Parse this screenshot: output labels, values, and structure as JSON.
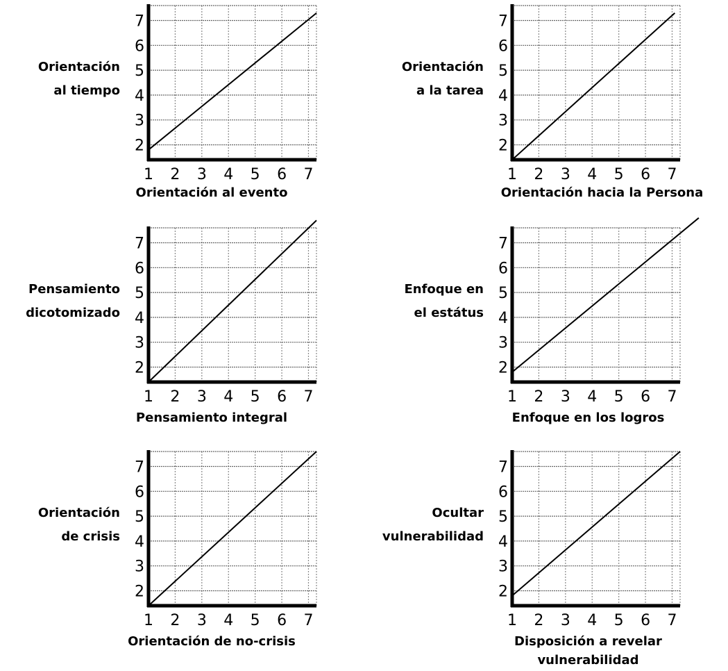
{
  "chart_data": [
    {
      "type": "line",
      "ylabel": [
        "Orientación",
        "al tiempo"
      ],
      "xlabel": [
        "Orientación al evento"
      ],
      "x_ticks": [
        "1",
        "2",
        "3",
        "4",
        "5",
        "6",
        "7"
      ],
      "y_ticks": [
        "2",
        "3",
        "4",
        "5",
        "6",
        "7"
      ],
      "xlim": [
        1,
        7.3
      ],
      "ylim": [
        1.4,
        7.6
      ],
      "grid": true,
      "series": [
        {
          "x": [
            1,
            7.3
          ],
          "y": [
            1.8,
            7.3
          ]
        }
      ]
    },
    {
      "type": "line",
      "ylabel": [
        "Orientación",
        "a la tarea"
      ],
      "xlabel": [
        "Orientación hacia la Persona"
      ],
      "x_ticks": [
        "1",
        "2",
        "3",
        "4",
        "5",
        "6",
        "7"
      ],
      "y_ticks": [
        "2",
        "3",
        "4",
        "5",
        "6",
        "7"
      ],
      "xlim": [
        1,
        7.3
      ],
      "ylim": [
        1.4,
        7.6
      ],
      "grid": true,
      "series": [
        {
          "x": [
            1,
            7.1
          ],
          "y": [
            1.4,
            7.3
          ]
        }
      ]
    },
    {
      "type": "line",
      "ylabel": [
        "Pensamiento",
        "dicotomizado"
      ],
      "xlabel": [
        "Pensamiento integral"
      ],
      "x_ticks": [
        "1",
        "2",
        "3",
        "4",
        "5",
        "6",
        "7"
      ],
      "y_ticks": [
        "2",
        "3",
        "4",
        "5",
        "6",
        "7"
      ],
      "xlim": [
        1,
        7.3
      ],
      "ylim": [
        1.4,
        7.6
      ],
      "grid": true,
      "series": [
        {
          "x": [
            1,
            7.3
          ],
          "y": [
            1.4,
            7.9
          ]
        }
      ]
    },
    {
      "type": "line",
      "ylabel": [
        "Enfoque en",
        "el estátus"
      ],
      "xlabel": [
        "Enfoque en los logros"
      ],
      "x_ticks": [
        "1",
        "2",
        "3",
        "4",
        "5",
        "6",
        "7"
      ],
      "y_ticks": [
        "2",
        "3",
        "4",
        "5",
        "6",
        "7"
      ],
      "xlim": [
        1,
        7.3
      ],
      "ylim": [
        1.4,
        7.6
      ],
      "grid": true,
      "series": [
        {
          "x": [
            1,
            8.0
          ],
          "y": [
            1.8,
            8.0
          ]
        }
      ]
    },
    {
      "type": "line",
      "ylabel": [
        "Orientación",
        "de crisis"
      ],
      "xlabel": [
        "Orientación de no-crisis"
      ],
      "x_ticks": [
        "1",
        "2",
        "3",
        "4",
        "5",
        "6",
        "7"
      ],
      "y_ticks": [
        "2",
        "3",
        "4",
        "5",
        "6",
        "7"
      ],
      "xlim": [
        1,
        7.3
      ],
      "ylim": [
        1.4,
        7.6
      ],
      "grid": true,
      "series": [
        {
          "x": [
            1,
            7.3
          ],
          "y": [
            1.4,
            7.6
          ]
        }
      ]
    },
    {
      "type": "line",
      "ylabel": [
        "Ocultar",
        "vulnerabilidad"
      ],
      "xlabel": [
        "Disposición a revelar",
        "vulnerabilidad"
      ],
      "x_ticks": [
        "1",
        "2",
        "3",
        "4",
        "5",
        "6",
        "7"
      ],
      "y_ticks": [
        "2",
        "3",
        "4",
        "5",
        "6",
        "7"
      ],
      "xlim": [
        1,
        7.3
      ],
      "ylim": [
        1.4,
        7.6
      ],
      "grid": true,
      "series": [
        {
          "x": [
            1,
            7.3
          ],
          "y": [
            1.8,
            7.6
          ]
        }
      ]
    }
  ]
}
